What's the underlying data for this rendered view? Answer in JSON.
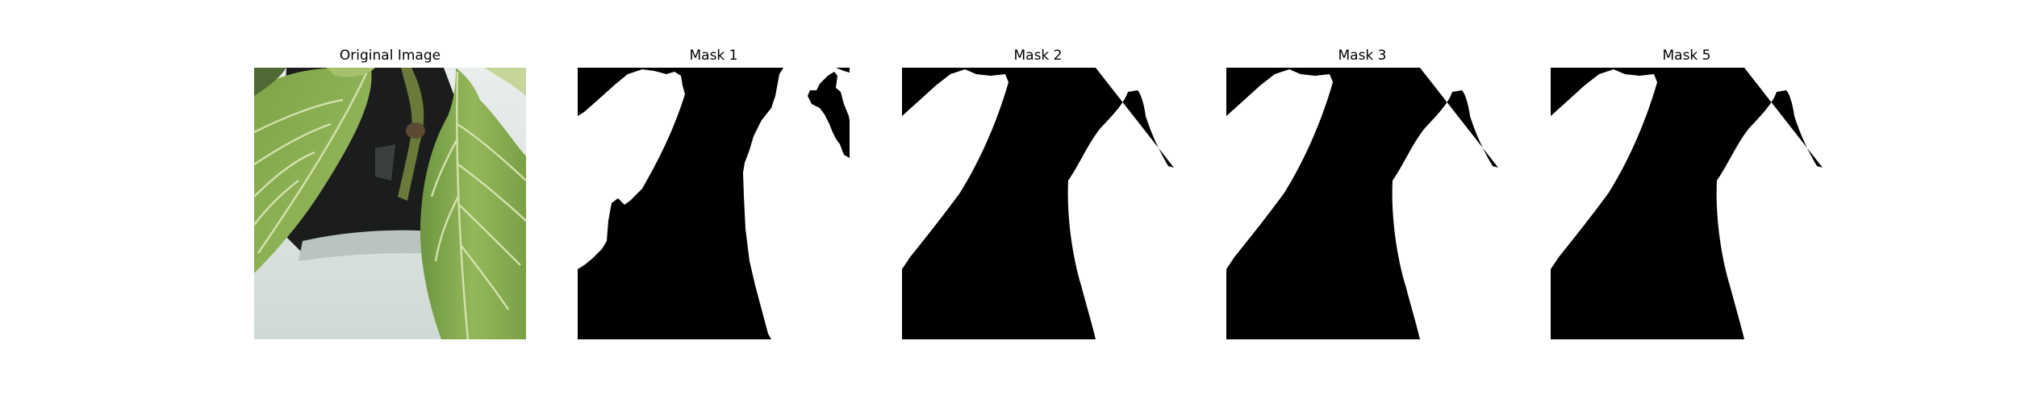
{
  "panels": [
    {
      "title": "Original Image"
    },
    {
      "title": "Mask 1"
    },
    {
      "title": "Mask 2"
    },
    {
      "title": "Mask 3"
    },
    {
      "title": "Mask 5"
    }
  ],
  "colors": {
    "background": "#ffffff",
    "mask_foreground": "#ffffff",
    "mask_background": "#000000",
    "leaf_green": "#86ab4e",
    "leaf_vein": "#d9e7b4",
    "pot_white": "#dfe6e3",
    "dark_interior": "#1b1d1d"
  }
}
